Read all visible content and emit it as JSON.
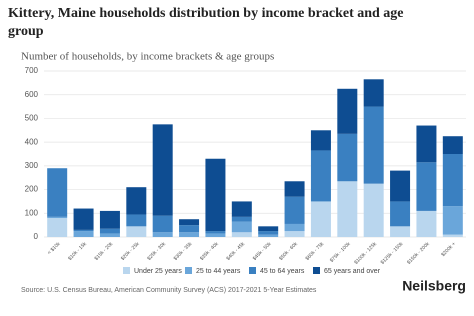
{
  "chart_data": {
    "type": "stacked_bar",
    "title": "Kittery, Maine households distribution by income bracket and age group",
    "subtitle": "Number of households, by income brackets & age groups",
    "categories": [
      "< $10k",
      "$10k - 15k",
      "$15k - 20k",
      "$20k - 25k",
      "$25k - 30k",
      "$30k - 35k",
      "$35k - 40k",
      "$40k - 45k",
      "$45k - 50k",
      "$50k - 60k",
      "$60k - 75k",
      "$75k - 100k",
      "$100k - 125k",
      "$125k - 150k",
      "$150k - 200k",
      "$200k +"
    ],
    "series": [
      {
        "name": "Under 25 years",
        "color": "#b9d6ee",
        "values": [
          80,
          0,
          0,
          45,
          0,
          0,
          0,
          20,
          0,
          25,
          150,
          235,
          225,
          45,
          110,
          10
        ]
      },
      {
        "name": "25 to 44 years",
        "color": "#6aa6da",
        "values": [
          5,
          25,
          15,
          0,
          20,
          20,
          15,
          45,
          10,
          30,
          0,
          0,
          0,
          0,
          0,
          120
        ]
      },
      {
        "name": "45 to 64 years",
        "color": "#3a80c1",
        "values": [
          205,
          5,
          20,
          50,
          70,
          30,
          10,
          20,
          15,
          115,
          215,
          200,
          325,
          105,
          205,
          220
        ]
      },
      {
        "name": "65 years and over",
        "color": "#0e4d92",
        "values": [
          0,
          90,
          75,
          115,
          385,
          25,
          305,
          65,
          20,
          65,
          85,
          190,
          115,
          130,
          155,
          75
        ]
      }
    ],
    "ylim": [
      0,
      700
    ],
    "yticks": [
      0,
      100,
      200,
      300,
      400,
      500,
      600,
      700
    ],
    "grid": true,
    "source": "Source: U.S. Census Bureau, American Community Survey (ACS) 2017-2021 5-Year Estimates",
    "brand": "Neilsberg"
  }
}
